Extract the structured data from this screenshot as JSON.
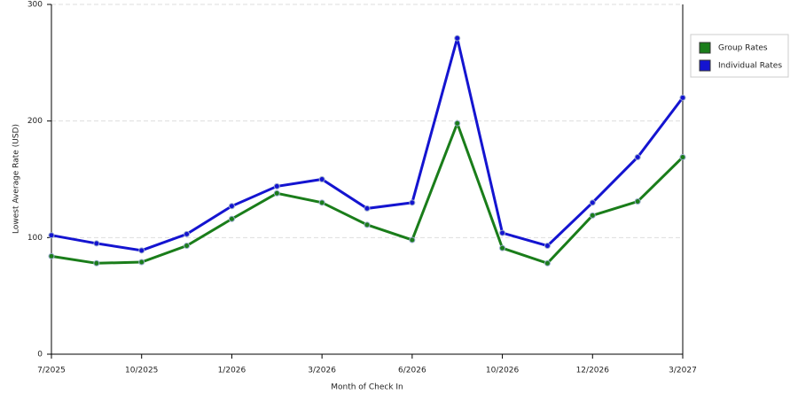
{
  "chart_data": {
    "type": "line",
    "x_label": "Month of Check In",
    "y_label": "Lowest Average Rate (USD)",
    "categories": [
      "7/2025",
      null,
      "10/2025",
      null,
      "1/2026",
      null,
      "3/2026",
      null,
      "6/2026",
      null,
      "10/2026",
      null,
      "12/2026",
      null,
      "3/2027"
    ],
    "series": [
      {
        "name": "Group Rates",
        "color": "#1a7d1a",
        "values": [
          84,
          78,
          79,
          93,
          116,
          138,
          130,
          111,
          98,
          198,
          91,
          78,
          119,
          131,
          169
        ]
      },
      {
        "name": "Individual Rates",
        "color": "#1414d0",
        "values": [
          102,
          95,
          89,
          103,
          127,
          144,
          150,
          125,
          130,
          271,
          104,
          93,
          130,
          169,
          220
        ]
      }
    ],
    "ylim": [
      0,
      300
    ],
    "yticks": [
      0,
      100,
      200,
      300
    ],
    "grid": true,
    "legend": "right"
  }
}
